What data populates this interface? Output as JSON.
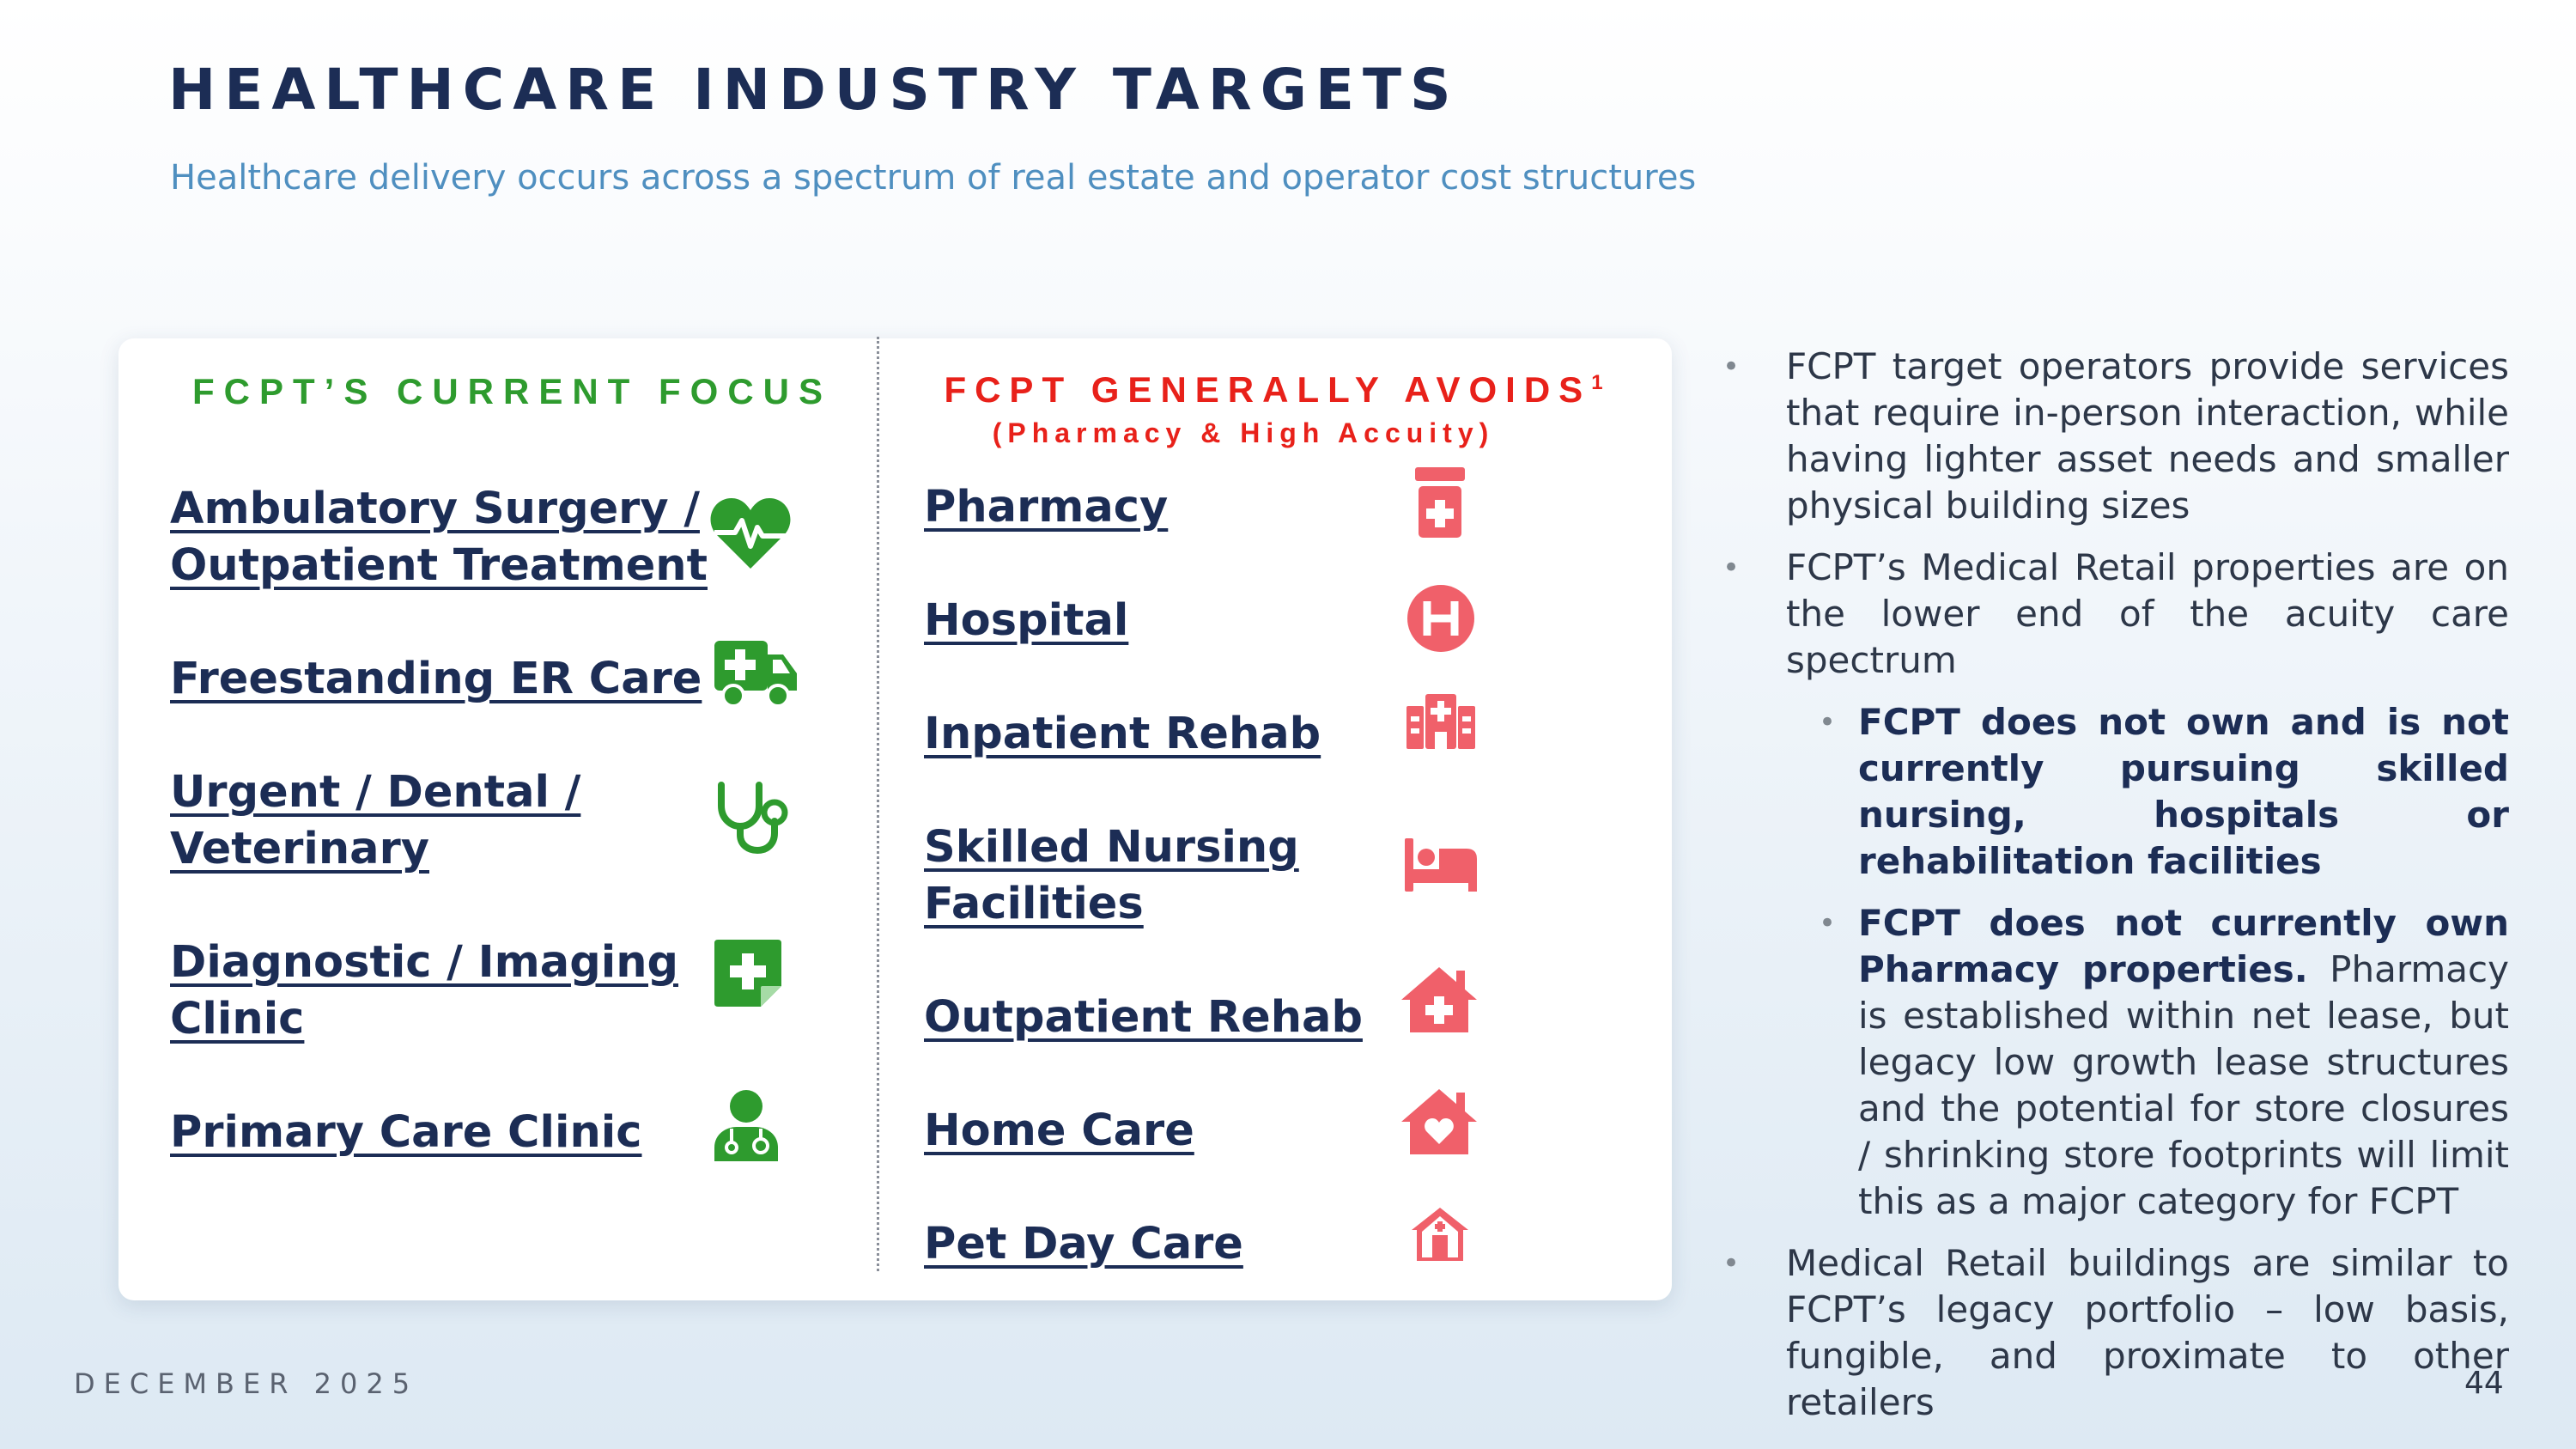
{
  "header": {
    "title": "HEALTHCARE INDUSTRY TARGETS",
    "subtitle": "Healthcare delivery occurs across a spectrum of real estate and operator cost structures"
  },
  "colors": {
    "title": "#1c2d55",
    "subtitle": "#4f8fc0",
    "focus_green": "#2e9b2e",
    "avoid_red": "#e8211a",
    "avoid_icon": "#f0606a"
  },
  "left_column": {
    "heading": "FCPT’S CURRENT FOCUS",
    "items": [
      {
        "line1": "Ambulatory Surgery /",
        "line2": "Outpatient Treatment",
        "icon": "heart-pulse-icon"
      },
      {
        "line1": "Freestanding ER Care",
        "line2": "",
        "icon": "ambulance-icon"
      },
      {
        "line1": "Urgent / Dental /",
        "line2": "Veterinary",
        "icon": "stethoscope-icon"
      },
      {
        "line1": "Diagnostic / Imaging",
        "line2": "Clinic",
        "icon": "medical-note-icon"
      },
      {
        "line1": "Primary Care Clinic",
        "line2": "",
        "icon": "doctor-icon"
      }
    ]
  },
  "right_column": {
    "heading": "FCPT GENERALLY AVOIDS",
    "heading_footnote": "1",
    "subheading": "(Pharmacy & High Accuity)",
    "items": [
      {
        "line1": "Pharmacy",
        "line2": "",
        "icon": "prescription-bottle-icon"
      },
      {
        "line1": "Hospital",
        "line2": "",
        "icon": "hospital-h-icon"
      },
      {
        "line1": "Inpatient Rehab",
        "line2": "",
        "icon": "hospital-building-icon"
      },
      {
        "line1": "Skilled Nursing",
        "line2": "Facilities",
        "icon": "bed-icon"
      },
      {
        "line1": "Outpatient Rehab",
        "line2": "",
        "icon": "house-medical-icon"
      },
      {
        "line1": "Home Care",
        "line2": "",
        "icon": "house-heart-icon"
      },
      {
        "line1": "Pet Day Care",
        "line2": "",
        "icon": "shelter-icon"
      }
    ]
  },
  "bullets": {
    "b1": "FCPT target operators provide services that require in-person interaction, while having lighter asset needs and smaller physical building sizes",
    "b2": "FCPT’s Medical Retail properties are on the lower end of the acuity care spectrum",
    "b2a_bold": "FCPT does not own and is not currently pursuing skilled nursing, hospitals or rehabilitation facilities",
    "b2b_bold": "FCPT does not currently own Pharmacy properties.",
    "b2b_text": " Pharmacy is established within net lease, but legacy low growth lease structures and the potential for store closures / shrinking store footprints will limit this as a major category for FCPT",
    "b3": "Medical Retail buildings are similar to FCPT’s legacy portfolio – low basis, fungible, and proximate to other retailers"
  },
  "footer": {
    "date": "DECEMBER 2025",
    "page": "44"
  }
}
